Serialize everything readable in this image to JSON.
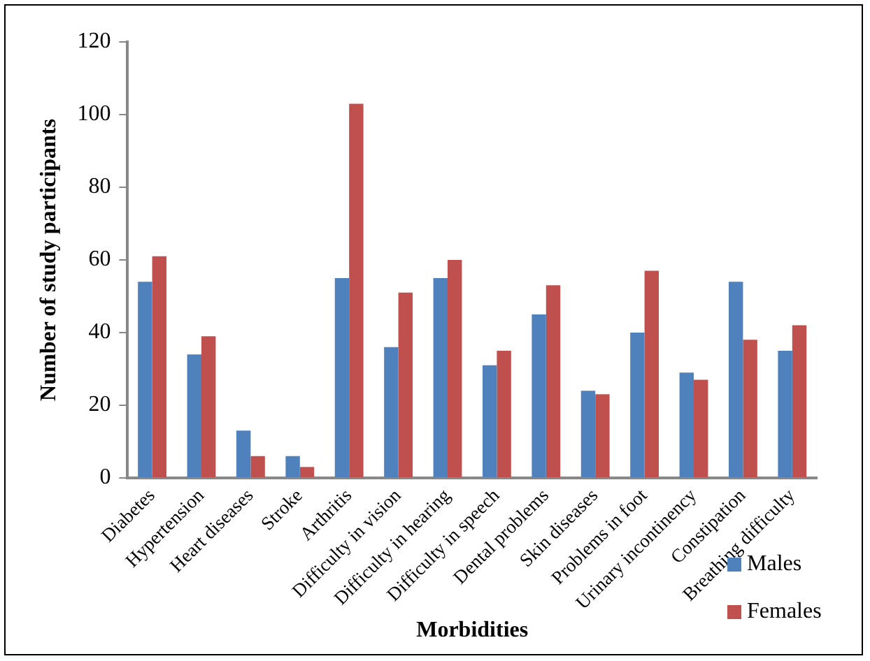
{
  "chart_data": {
    "type": "bar",
    "xlabel": "Morbidities",
    "ylabel": "Number of study participants",
    "categories": [
      "Diabetes",
      "Hypertension",
      "Heart diseases",
      "Stroke",
      "Arthritis",
      "Difficulty in vision",
      "Difficulty in hearing",
      "Difficulty in speech",
      "Dental problems",
      "Skin diseases",
      "Problems in foot",
      "Urinary incontinency",
      "Constipation",
      "Breathing difficulty"
    ],
    "series": [
      {
        "name": "Males",
        "color": "#4f81bd",
        "values": [
          54,
          34,
          13,
          6,
          55,
          36,
          55,
          31,
          45,
          24,
          40,
          29,
          54,
          35
        ]
      },
      {
        "name": "Females",
        "color": "#c0504d",
        "values": [
          61,
          39,
          6,
          3,
          103,
          51,
          60,
          35,
          53,
          23,
          57,
          27,
          38,
          42
        ]
      }
    ],
    "ylim": [
      0,
      120
    ],
    "yticks": [
      0,
      20,
      40,
      60,
      80,
      100,
      120
    ],
    "grid": false,
    "legend": "bottom right"
  }
}
